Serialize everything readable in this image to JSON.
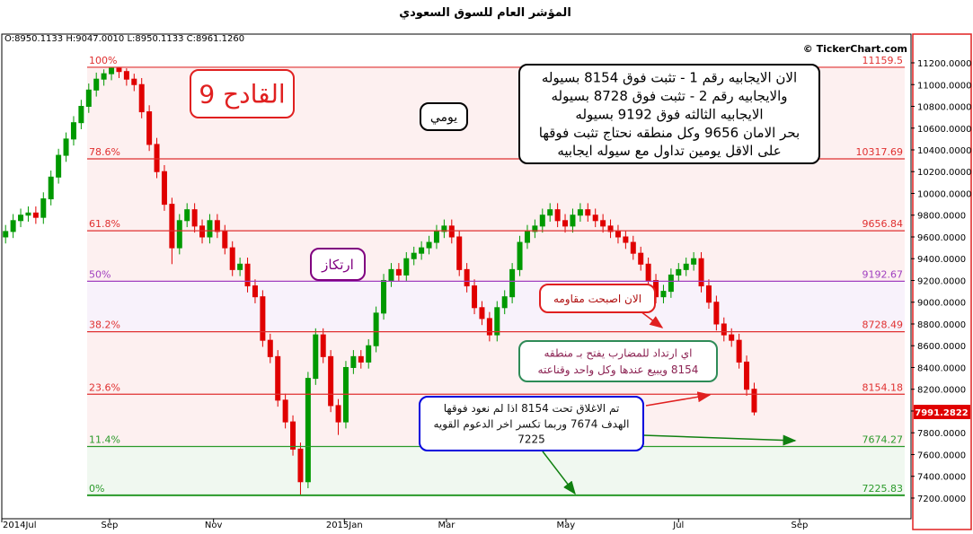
{
  "chart_data": {
    "type": "candlestick",
    "title": "المؤشر العام للسوق السعودي",
    "info": "O:8950.1133 H:9047.0010 L:8950.1133 C:8961.1260",
    "watermark": "© TickerChart.com",
    "up_color": "#009900",
    "down_color": "#e00000",
    "last_price_color": "#e00000",
    "open": [
      9600,
      9650,
      9750,
      9800,
      9820,
      9780,
      9950,
      10150,
      10350,
      10500,
      10650,
      10800,
      10950,
      11050,
      11100,
      11150,
      11120,
      11050,
      11000,
      10750,
      10450,
      10200,
      9900,
      9500,
      9750,
      9850,
      9700,
      9600,
      9750,
      9650,
      9500,
      9300,
      9350,
      9150,
      9050,
      8650,
      8500,
      8100,
      7900,
      7650,
      7350,
      8300,
      8700,
      8500,
      8050,
      7900,
      8400,
      8500,
      8450,
      8600,
      8900,
      9200,
      9300,
      9250,
      9400,
      9450,
      9500,
      9550,
      9650,
      9700,
      9600,
      9300,
      9150,
      8950,
      8850,
      8700,
      8950,
      9050,
      9300,
      9550,
      9650,
      9700,
      9800,
      9850,
      9750,
      9700,
      9800,
      9850,
      9800,
      9750,
      9700,
      9650,
      9600,
      9550,
      9450,
      9350,
      9200,
      9050,
      9100,
      9250,
      9300,
      9350,
      9400,
      9150,
      9000,
      8800,
      8700,
      8650,
      8450,
      8200
    ],
    "high": [
      9710,
      9810,
      9860,
      9880,
      9880,
      10010,
      10210,
      10410,
      10560,
      10710,
      10860,
      11010,
      11110,
      11140,
      11159.5,
      11155,
      11150,
      11100,
      11060,
      10810,
      10510,
      10260,
      9960,
      9810,
      9910,
      9910,
      9760,
      9810,
      9810,
      9710,
      9560,
      9410,
      9410,
      9210,
      9110,
      8710,
      8560,
      8160,
      7960,
      7710,
      8360,
      8760,
      8760,
      8560,
      8110,
      8460,
      8560,
      8560,
      8660,
      8960,
      9260,
      9360,
      9360,
      9460,
      9510,
      9560,
      9610,
      9710,
      9760,
      9760,
      9660,
      9360,
      9210,
      9010,
      8910,
      9010,
      9110,
      9360,
      9610,
      9710,
      9760,
      9860,
      9910,
      9910,
      9810,
      9860,
      9910,
      9910,
      9860,
      9810,
      9760,
      9710,
      9660,
      9610,
      9510,
      9410,
      9260,
      9160,
      9310,
      9360,
      9410,
      9460,
      9460,
      9210,
      9060,
      8860,
      8760,
      8710,
      8510,
      8260
    ],
    "low": [
      9540,
      9590,
      9690,
      9740,
      9720,
      9720,
      9890,
      10090,
      10290,
      10440,
      10590,
      10740,
      10890,
      10990,
      11040,
      11060,
      10990,
      10940,
      10690,
      10390,
      10140,
      9840,
      9350,
      9440,
      9690,
      9640,
      9540,
      9540,
      9590,
      9440,
      9240,
      9240,
      9090,
      8990,
      8590,
      8440,
      8040,
      7840,
      7590,
      7225.83,
      7290,
      8240,
      8440,
      7990,
      7780,
      7840,
      8340,
      8390,
      8390,
      8540,
      8840,
      9140,
      9190,
      9190,
      9340,
      9390,
      9440,
      9490,
      9590,
      9540,
      9240,
      9090,
      8890,
      8790,
      8640,
      8640,
      8890,
      8990,
      9240,
      9490,
      9590,
      9640,
      9740,
      9690,
      9640,
      9640,
      9740,
      9740,
      9690,
      9640,
      9590,
      9540,
      9490,
      9390,
      9290,
      9140,
      8990,
      8990,
      9040,
      9190,
      9240,
      9290,
      9090,
      8940,
      8740,
      8640,
      8590,
      8390,
      8140,
      7960
    ],
    "close": [
      9650,
      9750,
      9800,
      9820,
      9780,
      9950,
      10150,
      10350,
      10500,
      10650,
      10800,
      10950,
      11050,
      11100,
      11150,
      11120,
      11050,
      11000,
      10750,
      10450,
      10200,
      9900,
      9500,
      9750,
      9850,
      9700,
      9600,
      9750,
      9650,
      9500,
      9300,
      9350,
      9150,
      9050,
      8650,
      8500,
      8100,
      7900,
      7650,
      7350,
      8300,
      8700,
      8500,
      8050,
      7900,
      8400,
      8500,
      8450,
      8600,
      8900,
      9200,
      9300,
      9250,
      9400,
      9450,
      9500,
      9550,
      9650,
      9700,
      9600,
      9300,
      9150,
      8950,
      8850,
      8700,
      8950,
      9050,
      9300,
      9550,
      9650,
      9700,
      9800,
      9850,
      9750,
      9700,
      9800,
      9850,
      9800,
      9750,
      9700,
      9650,
      9600,
      9550,
      9450,
      9350,
      9200,
      9050,
      9100,
      9250,
      9300,
      9350,
      9400,
      9150,
      9000,
      8800,
      8700,
      8650,
      8450,
      8200,
      7991.2822
    ],
    "xlim": [
      0,
      120
    ],
    "xticks": [
      {
        "value": 0,
        "label": "2014Jul"
      },
      {
        "value": 14.25,
        "label": "Sep"
      },
      {
        "value": 28,
        "label": "Nov"
      },
      {
        "value": 45.3,
        "label": "2015Jan"
      },
      {
        "value": 58.8,
        "label": "Mar"
      },
      {
        "value": 74.6,
        "label": "May"
      },
      {
        "value": 89.5,
        "label": "Jul"
      },
      {
        "value": 105.5,
        "label": "Sep"
      }
    ],
    "ylim": [
      7010,
      11464
    ],
    "yticks": [
      {
        "value": 7200,
        "label": "7200.0000"
      },
      {
        "value": 7400,
        "label": "7400.0000"
      },
      {
        "value": 7600,
        "label": "7600.0000"
      },
      {
        "value": 7800,
        "label": "7800.0000"
      },
      {
        "value": 8000,
        "label": "8000.0000"
      },
      {
        "value": 8200,
        "label": "8200.0000"
      },
      {
        "value": 8400,
        "label": "8400.0000"
      },
      {
        "value": 8600,
        "label": "8600.0000"
      },
      {
        "value": 8800,
        "label": "8800.0000"
      },
      {
        "value": 9000,
        "label": "9000.0000"
      },
      {
        "value": 9200,
        "label": "9200.0000"
      },
      {
        "value": 9400,
        "label": "9400.0000"
      },
      {
        "value": 9600,
        "label": "9600.0000"
      },
      {
        "value": 9800,
        "label": "9800.0000"
      },
      {
        "value": 10000,
        "label": "10000.0000"
      },
      {
        "value": 10200,
        "label": "10200.0000"
      },
      {
        "value": 10400,
        "label": "10400.0000"
      },
      {
        "value": 10600,
        "label": "10600.0000"
      },
      {
        "value": 10800,
        "label": "10800.0000"
      },
      {
        "value": 11000,
        "label": "11000.0000"
      },
      {
        "value": 11200,
        "label": "11200.0000"
      }
    ],
    "fib_levels": [
      {
        "label": "100%",
        "value": 11159.5,
        "color": "#e03030"
      },
      {
        "label": "78.6%",
        "value": 10317.69,
        "color": "#e03030"
      },
      {
        "label": "61.8%",
        "value": 9656.84,
        "color": "#e03030"
      },
      {
        "label": "50%",
        "value": 9192.67,
        "color": "#a040c0"
      },
      {
        "label": "38.2%",
        "value": 8728.49,
        "color": "#e03030"
      },
      {
        "label": "23.6%",
        "value": 8154.18,
        "color": "#e03030"
      },
      {
        "label": "11.4%",
        "value": 7674.27,
        "color": "#2a9a2a"
      },
      {
        "label": "0%",
        "value": 7225.83,
        "color": "#2a9a2a"
      }
    ],
    "annotations": [
      {
        "lines": [
          "القادح 9"
        ],
        "color": "#e02020",
        "text_color": "#e02020"
      },
      {
        "lines": [
          "يومي"
        ],
        "color": "#000000",
        "text_color": "#000000"
      },
      {
        "lines": [
          "الان الايجابيه رقم 1 - تثبت فوق 8154 بسيوله",
          "والايجابيه رقم 2 - تثبت فوق 8728 بسيوله",
          "الايجابيه الثالثه فوق 9192 بسيوله",
          "بحر الامان 9656 وكل منطقه نحتاج تثبت فوقها",
          "على الاقل يومين تداول مع سيوله ايجابيه"
        ],
        "color": "#000000",
        "text_color": "#000000"
      },
      {
        "lines": [
          "ارتكاز"
        ],
        "color": "#800080",
        "text_color": "#800080"
      },
      {
        "lines": [
          "الان اصبحت مقاومه"
        ],
        "color": "#e02020",
        "text_color": "#b01010"
      },
      {
        "lines": [
          "اي ارتداد للمضارب يفتح بـ منطقه",
          "8154 ويبيع عندها وكل واحد وقناعته"
        ],
        "color": "#2e8b57",
        "text_color": "#8b2252"
      },
      {
        "lines": [
          "تم الاغلاق تحت 8154 اذا لم نعود فوقها",
          "الهدف 7674 وربما تكسر اخر الدعوم القويه",
          "7225"
        ],
        "color": "#0000dd",
        "text_color": "#101010"
      }
    ]
  }
}
